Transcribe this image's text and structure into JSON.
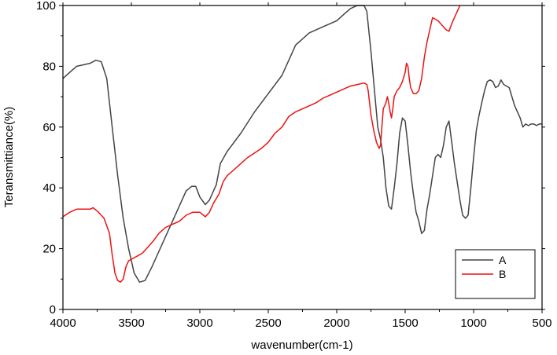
{
  "chart_data": {
    "type": "line",
    "xlabel": "wavenumber(cm-1)",
    "ylabel": "Teransmittiance(%)",
    "xlim": [
      4000,
      500
    ],
    "ylim": [
      0,
      100
    ],
    "x_ticks": [
      "4000",
      "3500",
      "3000",
      "2500",
      "2000",
      "1500",
      "1000",
      "500"
    ],
    "y_ticks": [
      "0",
      "20",
      "40",
      "60",
      "80",
      "100"
    ],
    "legend_position": "bottom-right",
    "series": [
      {
        "name": "A",
        "color": "#444444",
        "points": [
          [
            4000,
            76
          ],
          [
            3950,
            78
          ],
          [
            3900,
            80
          ],
          [
            3850,
            80.5
          ],
          [
            3800,
            81
          ],
          [
            3760,
            82
          ],
          [
            3720,
            81.5
          ],
          [
            3680,
            76
          ],
          [
            3640,
            60
          ],
          [
            3600,
            44
          ],
          [
            3560,
            30
          ],
          [
            3520,
            20
          ],
          [
            3480,
            12
          ],
          [
            3440,
            9
          ],
          [
            3400,
            9.5
          ],
          [
            3350,
            14
          ],
          [
            3300,
            19
          ],
          [
            3250,
            24
          ],
          [
            3200,
            29
          ],
          [
            3150,
            34
          ],
          [
            3100,
            39
          ],
          [
            3060,
            40.5
          ],
          [
            3030,
            40.5
          ],
          [
            3000,
            37
          ],
          [
            2960,
            34.5
          ],
          [
            2930,
            36
          ],
          [
            2900,
            39
          ],
          [
            2880,
            41
          ],
          [
            2850,
            48
          ],
          [
            2800,
            52
          ],
          [
            2700,
            58
          ],
          [
            2600,
            65
          ],
          [
            2500,
            71
          ],
          [
            2400,
            77
          ],
          [
            2350,
            82
          ],
          [
            2300,
            87
          ],
          [
            2250,
            89
          ],
          [
            2200,
            91
          ],
          [
            2100,
            93
          ],
          [
            2000,
            95
          ],
          [
            1950,
            97
          ],
          [
            1900,
            99
          ],
          [
            1850,
            100
          ],
          [
            1800,
            100
          ],
          [
            1780,
            98
          ],
          [
            1750,
            85
          ],
          [
            1720,
            70
          ],
          [
            1700,
            60
          ],
          [
            1680,
            56
          ],
          [
            1660,
            50
          ],
          [
            1640,
            40
          ],
          [
            1620,
            34
          ],
          [
            1600,
            33
          ],
          [
            1580,
            40
          ],
          [
            1560,
            48
          ],
          [
            1540,
            58
          ],
          [
            1520,
            63
          ],
          [
            1500,
            62
          ],
          [
            1480,
            54
          ],
          [
            1460,
            45
          ],
          [
            1440,
            38
          ],
          [
            1420,
            32
          ],
          [
            1400,
            29
          ],
          [
            1380,
            25
          ],
          [
            1360,
            26
          ],
          [
            1340,
            33
          ],
          [
            1320,
            38
          ],
          [
            1300,
            44
          ],
          [
            1280,
            50
          ],
          [
            1260,
            51
          ],
          [
            1240,
            50
          ],
          [
            1220,
            54
          ],
          [
            1200,
            60
          ],
          [
            1180,
            62
          ],
          [
            1160,
            55
          ],
          [
            1140,
            48
          ],
          [
            1120,
            42
          ],
          [
            1100,
            36
          ],
          [
            1080,
            31
          ],
          [
            1060,
            30
          ],
          [
            1040,
            31
          ],
          [
            1020,
            40
          ],
          [
            1000,
            50
          ],
          [
            980,
            59
          ],
          [
            960,
            64
          ],
          [
            940,
            68
          ],
          [
            920,
            72
          ],
          [
            900,
            75
          ],
          [
            880,
            75.5
          ],
          [
            860,
            75
          ],
          [
            840,
            73
          ],
          [
            820,
            73.5
          ],
          [
            800,
            75.5
          ],
          [
            780,
            74
          ],
          [
            760,
            73.5
          ],
          [
            740,
            73
          ],
          [
            720,
            70
          ],
          [
            700,
            67
          ],
          [
            680,
            65
          ],
          [
            660,
            63
          ],
          [
            640,
            60
          ],
          [
            620,
            61
          ],
          [
            600,
            60.5
          ],
          [
            580,
            61
          ],
          [
            560,
            61
          ],
          [
            540,
            60.5
          ],
          [
            520,
            61
          ],
          [
            500,
            61
          ]
        ]
      },
      {
        "name": "B",
        "color": "#ee1111",
        "points": [
          [
            4000,
            30.5
          ],
          [
            3950,
            32
          ],
          [
            3900,
            33
          ],
          [
            3850,
            33
          ],
          [
            3800,
            33
          ],
          [
            3780,
            33.5
          ],
          [
            3740,
            32
          ],
          [
            3700,
            30
          ],
          [
            3660,
            25
          ],
          [
            3640,
            18
          ],
          [
            3620,
            12
          ],
          [
            3600,
            9.5
          ],
          [
            3580,
            9
          ],
          [
            3560,
            10
          ],
          [
            3540,
            14
          ],
          [
            3520,
            16
          ],
          [
            3500,
            16.5
          ],
          [
            3460,
            17.5
          ],
          [
            3420,
            18.5
          ],
          [
            3380,
            20.5
          ],
          [
            3340,
            22.5
          ],
          [
            3300,
            25
          ],
          [
            3250,
            27
          ],
          [
            3200,
            28
          ],
          [
            3150,
            29
          ],
          [
            3100,
            31
          ],
          [
            3050,
            32
          ],
          [
            3000,
            32
          ],
          [
            2960,
            30.5
          ],
          [
            2930,
            32
          ],
          [
            2900,
            35
          ],
          [
            2860,
            38
          ],
          [
            2830,
            42
          ],
          [
            2800,
            44
          ],
          [
            2750,
            46
          ],
          [
            2700,
            48
          ],
          [
            2650,
            50
          ],
          [
            2600,
            51.5
          ],
          [
            2550,
            53
          ],
          [
            2500,
            55
          ],
          [
            2450,
            58
          ],
          [
            2400,
            60
          ],
          [
            2350,
            63.5
          ],
          [
            2300,
            65
          ],
          [
            2250,
            66
          ],
          [
            2200,
            67
          ],
          [
            2150,
            68
          ],
          [
            2100,
            69.5
          ],
          [
            2050,
            70.5
          ],
          [
            2000,
            71.5
          ],
          [
            1950,
            72.5
          ],
          [
            1900,
            73.5
          ],
          [
            1850,
            74
          ],
          [
            1800,
            74.5
          ],
          [
            1780,
            74
          ],
          [
            1770,
            72
          ],
          [
            1750,
            64
          ],
          [
            1730,
            59
          ],
          [
            1710,
            55
          ],
          [
            1690,
            53
          ],
          [
            1680,
            54
          ],
          [
            1670,
            60
          ],
          [
            1660,
            66
          ],
          [
            1640,
            68
          ],
          [
            1630,
            70
          ],
          [
            1620,
            68
          ],
          [
            1610,
            65
          ],
          [
            1600,
            63
          ],
          [
            1590,
            66
          ],
          [
            1580,
            70
          ],
          [
            1560,
            72
          ],
          [
            1540,
            73
          ],
          [
            1520,
            75
          ],
          [
            1500,
            78
          ],
          [
            1490,
            81
          ],
          [
            1480,
            80
          ],
          [
            1470,
            76
          ],
          [
            1460,
            73
          ],
          [
            1440,
            71
          ],
          [
            1420,
            71
          ],
          [
            1400,
            72
          ],
          [
            1380,
            76
          ],
          [
            1360,
            83
          ],
          [
            1340,
            88
          ],
          [
            1320,
            92
          ],
          [
            1300,
            96
          ],
          [
            1280,
            95.5
          ],
          [
            1260,
            95
          ],
          [
            1240,
            94
          ],
          [
            1220,
            93
          ],
          [
            1200,
            92
          ],
          [
            1180,
            91.5
          ],
          [
            1160,
            94
          ],
          [
            1140,
            96
          ],
          [
            1120,
            98
          ],
          [
            1100,
            100
          ]
        ]
      }
    ]
  }
}
